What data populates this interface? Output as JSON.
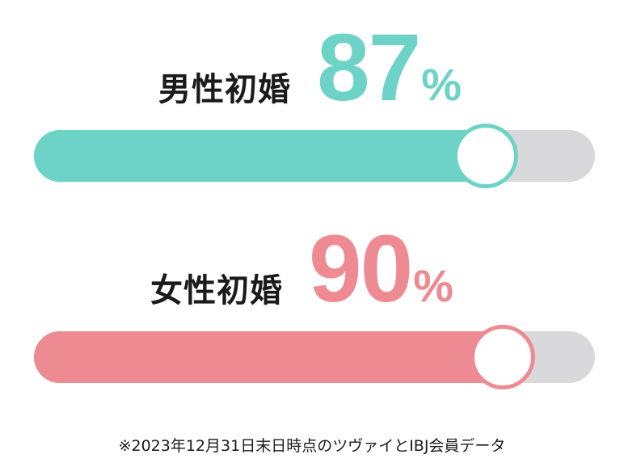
{
  "chart_data": {
    "type": "bar",
    "orientation": "horizontal",
    "categories": [
      "男性初婚",
      "女性初婚"
    ],
    "values": [
      87,
      90
    ],
    "value_labels": [
      "87",
      "90"
    ],
    "unit": "%",
    "xlim": [
      0,
      100
    ],
    "colors": [
      "#6dd3c7",
      "#ee8a91"
    ],
    "track_color": "#d9d9db",
    "legend": "none",
    "grid": false
  },
  "footnote": "※2023年12月31日末日時点のツヴァイとIBJ会員データ"
}
